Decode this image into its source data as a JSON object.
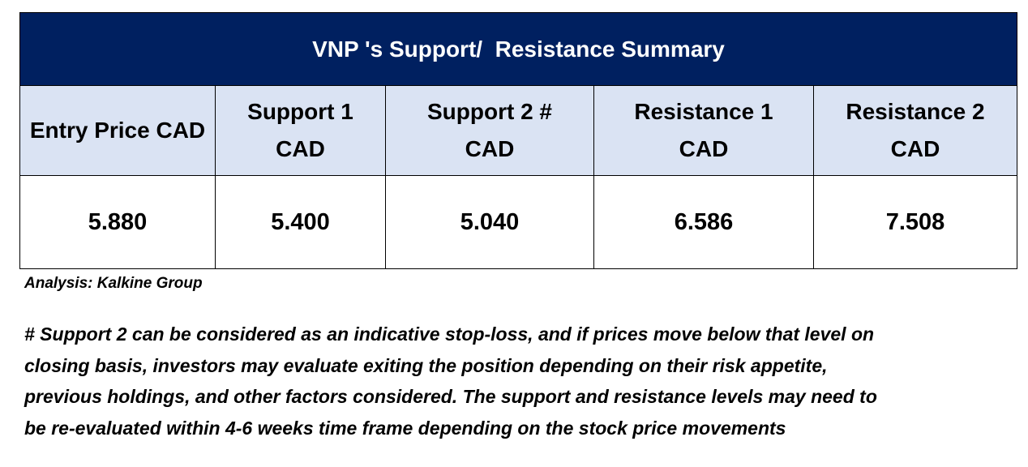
{
  "colors": {
    "title_background": "#002060",
    "header_background": "#DAE3F3",
    "title_text": "#FFFFFF"
  },
  "title": "VNP 's Support/  Resistance Summary",
  "headers": [
    {
      "line1": "Entry Price CAD",
      "line2": ""
    },
    {
      "line1": "Support 1",
      "line2": "CAD"
    },
    {
      "line1": "Support 2 #",
      "line2": "CAD"
    },
    {
      "line1": "Resistance 1",
      "line2": "CAD"
    },
    {
      "line1": "Resistance 2",
      "line2": "CAD"
    }
  ],
  "values": [
    "5.880",
    "5.400",
    "5.040",
    "6.586",
    "7.508"
  ],
  "credit": "Analysis: Kalkine Group",
  "note_lines": [
    "# Support 2 can be considered as an indicative stop-loss, and if prices move below that level on",
    "closing basis, investors may evaluate exiting the position depending on their risk appetite,",
    "previous holdings, and other factors considered. The support and resistance levels may need to",
    "be re-evaluated within 4-6 weeks time frame depending on the stock price movements"
  ]
}
